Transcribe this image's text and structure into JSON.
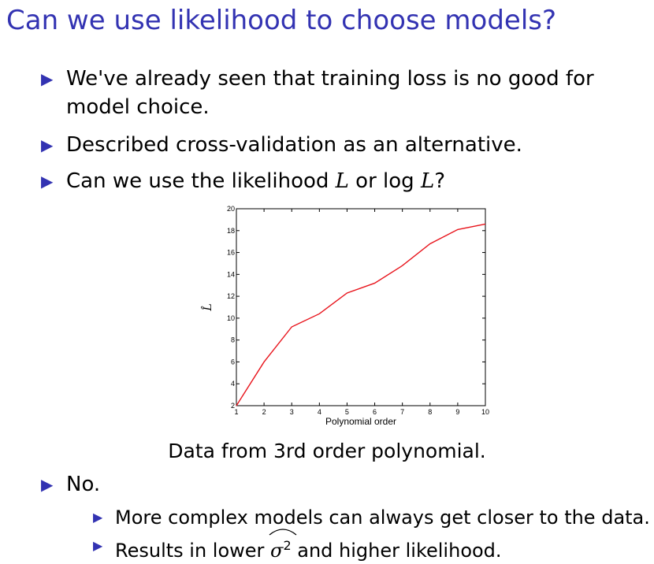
{
  "slide": {
    "title": "Can we use likelihood to choose models?",
    "bullets": [
      "We've already seen that training loss is no good for",
      "model choice.",
      "Described cross-validation as an alternative.",
      "Can we use the likelihood ",
      "L",
      " or log ",
      "L",
      "?"
    ],
    "caption": "Data from 3rd order polynomial.",
    "answer": "No.",
    "sub_bullets": [
      "More complex models can always get closer to the data.",
      "Results in lower ",
      "σ",
      "2",
      " and higher likelihood."
    ],
    "colors": {
      "title": "#3333b2",
      "marker": "#3333b2",
      "series": "#e8141c"
    },
    "marker_icon": "triangle-right-icon"
  },
  "chart_data": {
    "type": "line",
    "xlabel": "Polynomial order",
    "ylabel": "L̂",
    "xlim": [
      1,
      10
    ],
    "ylim": [
      2,
      20
    ],
    "x_ticks": [
      1,
      2,
      3,
      4,
      5,
      6,
      7,
      8,
      9,
      10
    ],
    "y_ticks": [
      2,
      4,
      6,
      8,
      10,
      12,
      14,
      16,
      18,
      20
    ],
    "grid": false,
    "series": [
      {
        "x": [
          1,
          2,
          3,
          4,
          5,
          6,
          7,
          8,
          9,
          10
        ],
        "values": [
          2.0,
          6.0,
          9.2,
          10.4,
          12.3,
          13.2,
          14.8,
          16.8,
          18.1,
          18.6
        ],
        "color": "#e8141c"
      }
    ]
  }
}
